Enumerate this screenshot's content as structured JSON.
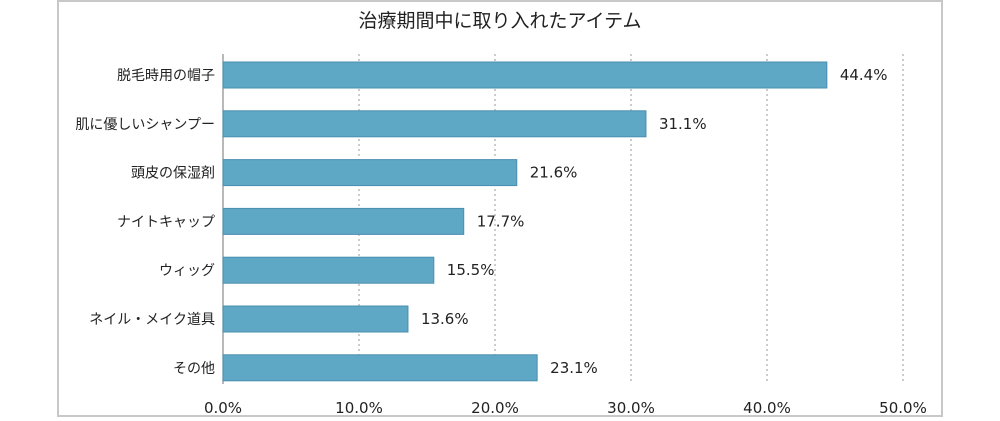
{
  "chart_data": {
    "type": "bar",
    "orientation": "horizontal",
    "title": "治療期間中に取り入れたアイテム",
    "categories": [
      "脱毛時用の帽子",
      "肌に優しいシャンプー",
      "頭皮の保湿剤",
      "ナイトキャップ",
      "ウィッグ",
      "ネイル・メイク道具",
      "その他"
    ],
    "values": [
      44.4,
      31.1,
      21.6,
      17.7,
      15.5,
      13.6,
      23.1
    ],
    "value_labels": [
      "44.4%",
      "31.1%",
      "21.6%",
      "17.7%",
      "15.5%",
      "13.6%",
      "23.1%"
    ],
    "x_ticks": [
      0,
      10,
      20,
      30,
      40,
      50
    ],
    "x_tick_labels": [
      "0.0%",
      "10.0%",
      "20.0%",
      "30.0%",
      "40.0%",
      "50.0%"
    ],
    "xlim": [
      0,
      50
    ],
    "grid": "vertical dotted",
    "legend": "none",
    "bar_color": "#5ea7c5",
    "bar_border_color": "#4a8fb0",
    "grid_color": "#b0b0b0"
  }
}
